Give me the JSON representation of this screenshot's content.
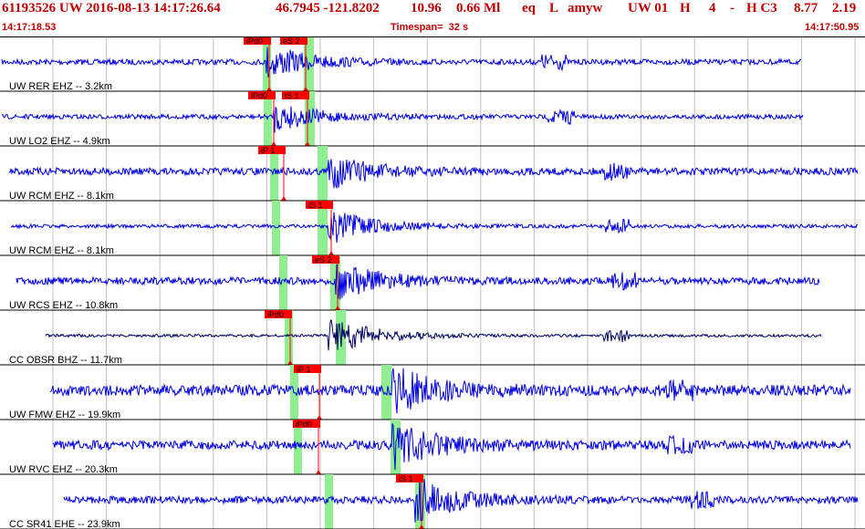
{
  "header": {
    "event": "61193526 UW 2016-08-13 14:17:26.64",
    "location": "46.7945 -121.8202",
    "depth": "10.96",
    "magnitude": "0.66 Ml",
    "etype": "eq",
    "gtype": "L",
    "auth": "amyw",
    "source": "UW 01",
    "flag1": "H",
    "flag2": "4",
    "flag3": "-",
    "flag4": "H C3",
    "value1": "8.77",
    "value2": "2.19",
    "start_time": "14:17:18.53",
    "timespan": "Timespan=  32 s",
    "end_time": "14:17:50.95"
  },
  "traces": [
    {
      "label": "UW RER EHZ -- 3.2km",
      "picks": [
        "iPd0",
        "eS 2"
      ]
    },
    {
      "label": "UW LO2 EHZ -- 4.9km",
      "picks": [
        "iPd0",
        "iS 1"
      ]
    },
    {
      "label": "UW RCM EHZ -- 8.1km",
      "picks": [
        "iP 1"
      ]
    },
    {
      "label": "UW RCM EHZ -- 8.1km",
      "picks": [
        "iS 1"
      ]
    },
    {
      "label": "UW RCS EHZ -- 10.8km",
      "picks": [
        "eS 2"
      ]
    },
    {
      "label": "CC OBSR BHZ -- 11.7km",
      "picks": [
        "iPd0"
      ]
    },
    {
      "label": "UW FMW EHZ -- 19.9km",
      "picks": [
        "iP 1"
      ]
    },
    {
      "label": "UW RVC EHZ -- 20.3km",
      "picks": [
        "iPd0"
      ]
    },
    {
      "label": "CC SR41 EHE -- 23.9km",
      "picks": [
        "iS 1"
      ]
    }
  ]
}
